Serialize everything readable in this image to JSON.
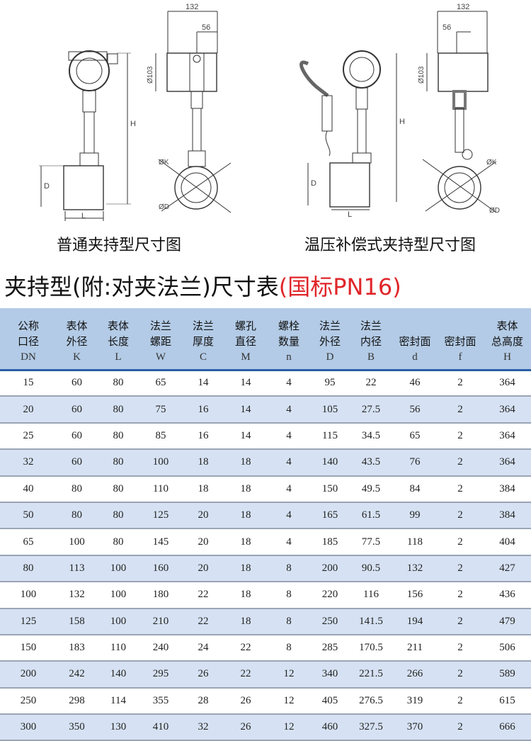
{
  "drawings": [
    {
      "caption": "普通夹持型尺寸图",
      "dims": {
        "width": "132",
        "offset": "56",
        "head_dia": "Ø103",
        "height": "H",
        "flange_dia": "D",
        "length": "L",
        "body_dia": "ØK",
        "pipe_dia": "ØD"
      }
    },
    {
      "caption": "温压补偿式夹持型尺寸图",
      "dims": {
        "width": "132",
        "offset": "56",
        "head_dia": "Ø103",
        "height": "H",
        "flange_dia": "D",
        "length": "L",
        "body_dia": "ØK",
        "pipe_dia": "ØD"
      }
    }
  ],
  "title": {
    "main": "夹持型(附:对夹法兰)尺寸表",
    "standard": "(国标PN16)",
    "standard_color": "#e0262a"
  },
  "table": {
    "columns": [
      {
        "l1": "公称",
        "l2": "口径",
        "sym": "DN"
      },
      {
        "l1": "表体",
        "l2": "外径",
        "sym": "K"
      },
      {
        "l1": "表体",
        "l2": "长度",
        "sym": "L"
      },
      {
        "l1": "法兰",
        "l2": "螺距",
        "sym": "W"
      },
      {
        "l1": "法兰",
        "l2": "厚度",
        "sym": "C"
      },
      {
        "l1": "螺孔",
        "l2": "直径",
        "sym": "M"
      },
      {
        "l1": "螺栓",
        "l2": "数量",
        "sym": "n"
      },
      {
        "l1": "法兰",
        "l2": "外径",
        "sym": "D"
      },
      {
        "l1": "法兰",
        "l2": "内径",
        "sym": "B"
      },
      {
        "l1": "",
        "l2": "密封面",
        "sym": "d"
      },
      {
        "l1": "",
        "l2": "密封面",
        "sym": "f"
      },
      {
        "l1": "表体",
        "l2": "总高度",
        "sym": "H"
      }
    ],
    "rows": [
      [
        "15",
        "60",
        "80",
        "65",
        "14",
        "14",
        "4",
        "95",
        "22",
        "46",
        "2",
        "364"
      ],
      [
        "20",
        "60",
        "80",
        "75",
        "16",
        "14",
        "4",
        "105",
        "27.5",
        "56",
        "2",
        "364"
      ],
      [
        "25",
        "60",
        "80",
        "85",
        "16",
        "14",
        "4",
        "115",
        "34.5",
        "65",
        "2",
        "364"
      ],
      [
        "32",
        "60",
        "80",
        "100",
        "18",
        "18",
        "4",
        "140",
        "43.5",
        "76",
        "2",
        "364"
      ],
      [
        "40",
        "80",
        "80",
        "110",
        "18",
        "18",
        "4",
        "150",
        "49.5",
        "84",
        "2",
        "384"
      ],
      [
        "50",
        "80",
        "80",
        "125",
        "20",
        "18",
        "4",
        "165",
        "61.5",
        "99",
        "2",
        "384"
      ],
      [
        "65",
        "100",
        "80",
        "145",
        "20",
        "18",
        "4",
        "185",
        "77.5",
        "118",
        "2",
        "404"
      ],
      [
        "80",
        "113",
        "100",
        "160",
        "20",
        "18",
        "8",
        "200",
        "90.5",
        "132",
        "2",
        "427"
      ],
      [
        "100",
        "132",
        "100",
        "180",
        "22",
        "18",
        "8",
        "220",
        "116",
        "156",
        "2",
        "436"
      ],
      [
        "125",
        "158",
        "100",
        "210",
        "22",
        "18",
        "8",
        "250",
        "141.5",
        "194",
        "2",
        "479"
      ],
      [
        "150",
        "183",
        "110",
        "240",
        "24",
        "22",
        "8",
        "285",
        "170.5",
        "211",
        "2",
        "506"
      ],
      [
        "200",
        "242",
        "140",
        "295",
        "26",
        "22",
        "12",
        "340",
        "221.5",
        "266",
        "2",
        "589"
      ],
      [
        "250",
        "298",
        "114",
        "355",
        "28",
        "26",
        "12",
        "405",
        "276.5",
        "319",
        "2",
        "615"
      ],
      [
        "300",
        "350",
        "130",
        "410",
        "32",
        "26",
        "12",
        "460",
        "327.5",
        "370",
        "2",
        "666"
      ]
    ]
  }
}
